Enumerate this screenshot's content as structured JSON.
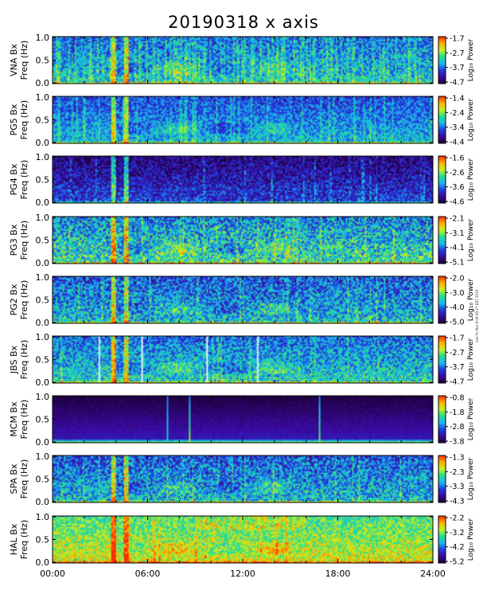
{
  "chart_data": {
    "type": "heatmap",
    "title": "20190318 x axis",
    "xlabel": "",
    "x_ticks": [
      "00:00",
      "06:00",
      "12:00",
      "18:00",
      "24:00"
    ],
    "x_range_hours": [
      0,
      24
    ],
    "y_ticks": [
      "0.0",
      "0.5",
      "1.0"
    ],
    "y_range_hz": [
      0,
      1.0
    ],
    "colorbar_label": "Log₁₀ Power",
    "colormap": [
      "#1a0033",
      "#3a0aa0",
      "#1f3de0",
      "#1bb8f0",
      "#22e08a",
      "#c8f020",
      "#ffb000",
      "#ff2a00"
    ],
    "grid": false,
    "panels": [
      {
        "station": "VNA",
        "ylabel_line1": "VNA Bx",
        "ylabel_line2": "Freq (Hz)",
        "colorbar_ticks": [
          "-1.7",
          "-2.7",
          "-3.7",
          "-4.7"
        ],
        "crange": [
          -4.7,
          -1.7
        ]
      },
      {
        "station": "PG5",
        "ylabel_line1": "PG5 Bx",
        "ylabel_line2": "Freq (Hz)",
        "colorbar_ticks": [
          "-1.4",
          "-2.4",
          "-3.4",
          "-4.4"
        ],
        "crange": [
          -4.4,
          -1.4
        ]
      },
      {
        "station": "PG4",
        "ylabel_line1": "PG4 Bx",
        "ylabel_line2": "Freq (Hz)",
        "colorbar_ticks": [
          "-1.6",
          "-2.6",
          "-3.6",
          "-4.6"
        ],
        "crange": [
          -4.6,
          -1.6
        ]
      },
      {
        "station": "PG3",
        "ylabel_line1": "PG3 Bx",
        "ylabel_line2": "Freq (Hz)",
        "colorbar_ticks": [
          "-2.1",
          "-3.1",
          "-4.1",
          "-5.1"
        ],
        "crange": [
          -5.1,
          -2.1
        ]
      },
      {
        "station": "PG2",
        "ylabel_line1": "PG2 Bx",
        "ylabel_line2": "Freq (Hz)",
        "colorbar_ticks": [
          "-2.0",
          "-3.0",
          "-4.0",
          "-5.0"
        ],
        "crange": [
          -5.0,
          -2.0
        ]
      },
      {
        "station": "JBS",
        "ylabel_line1": "JBS Bx",
        "ylabel_line2": "Freq (Hz)",
        "colorbar_ticks": [
          "-1.7",
          "-2.7",
          "-3.7",
          "-4.7"
        ],
        "crange": [
          -4.7,
          -1.7
        ]
      },
      {
        "station": "MCM",
        "ylabel_line1": "MCM Bx",
        "ylabel_line2": "Freq (Hz)",
        "colorbar_ticks": [
          "-0.8",
          "-1.8",
          "-2.8",
          "-3.8"
        ],
        "crange": [
          -3.8,
          -0.8
        ]
      },
      {
        "station": "SPA",
        "ylabel_line1": "SPA Bx",
        "ylabel_line2": "Freq (Hz)",
        "colorbar_ticks": [
          "-1.3",
          "-2.3",
          "-3.3",
          "-4.3"
        ],
        "crange": [
          -4.3,
          -1.3
        ]
      },
      {
        "station": "HAL",
        "ylabel_line1": "HAL Bx",
        "ylabel_line2": "Freq (Hz)",
        "colorbar_ticks": [
          "-2.2",
          "-3.2",
          "-4.2",
          "-5.2"
        ],
        "crange": [
          -5.2,
          -2.2
        ]
      }
    ]
  },
  "caption": "mel Fri Mar 8 09:09:27 EDT 2019"
}
